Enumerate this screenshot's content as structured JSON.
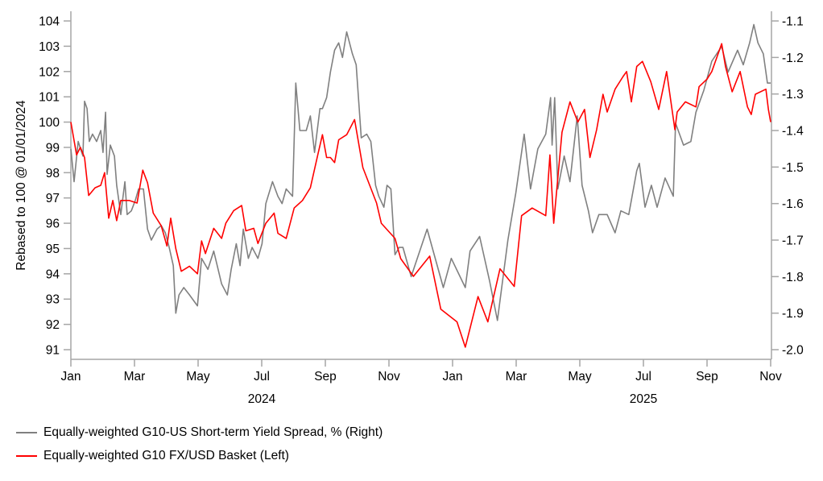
{
  "chart_data": {
    "type": "line",
    "title": "",
    "xlabel": "",
    "ylabel": "Rebased to 100 @ 01/01/2024",
    "x_unit": "months since Jan 2024",
    "x_ticks": [
      "Jan",
      "Mar",
      "May",
      "Jul",
      "Sep",
      "Nov",
      "Jan",
      "Mar",
      "May",
      "Jul",
      "Sep",
      "Nov"
    ],
    "x_tick_months": [
      0,
      2,
      4,
      6,
      8,
      10,
      12,
      14,
      16,
      18,
      20,
      22
    ],
    "year_labels": [
      {
        "label": "2024",
        "at_month": 6
      },
      {
        "label": "2025",
        "at_month": 18
      }
    ],
    "xlim": [
      0,
      22
    ],
    "y_left": {
      "ylim": [
        91,
        104
      ],
      "ticks": [
        "91",
        "92",
        "93",
        "94",
        "95",
        "96",
        "97",
        "98",
        "99",
        "100",
        "101",
        "102",
        "103",
        "104"
      ]
    },
    "y_right": {
      "ylim": [
        -2.0,
        -1.1
      ],
      "ticks": [
        "-2.0",
        "-1.9",
        "-1.8",
        "-1.7",
        "-1.6",
        "-1.5",
        "-1.4",
        "-1.3",
        "-1.2",
        "-1.1"
      ]
    },
    "grid": false,
    "legend_position": "bottom-left",
    "series": [
      {
        "name": "Equally-weighted G10-US Short-term Yield Spread, % (Right)",
        "axis": "right",
        "color": "#808080",
        "points": [
          [
            0,
            -1.45
          ],
          [
            0.1,
            -1.54
          ],
          [
            0.23,
            -1.43
          ],
          [
            0.38,
            -1.47
          ],
          [
            0.43,
            -1.32
          ],
          [
            0.51,
            -1.34
          ],
          [
            0.58,
            -1.43
          ],
          [
            0.68,
            -1.41
          ],
          [
            0.81,
            -1.43
          ],
          [
            0.94,
            -1.4
          ],
          [
            1.01,
            -1.46
          ],
          [
            1.09,
            -1.35
          ],
          [
            1.14,
            -1.52
          ],
          [
            1.24,
            -1.44
          ],
          [
            1.37,
            -1.47
          ],
          [
            1.44,
            -1.55
          ],
          [
            1.57,
            -1.63
          ],
          [
            1.7,
            -1.54
          ],
          [
            1.77,
            -1.63
          ],
          [
            1.9,
            -1.62
          ],
          [
            2.03,
            -1.59
          ],
          [
            2.13,
            -1.56
          ],
          [
            2.28,
            -1.56
          ],
          [
            2.41,
            -1.67
          ],
          [
            2.53,
            -1.7
          ],
          [
            2.71,
            -1.67
          ],
          [
            2.84,
            -1.66
          ],
          [
            2.97,
            -1.68
          ],
          [
            3.09,
            -1.72
          ],
          [
            3.22,
            -1.77
          ],
          [
            3.3,
            -1.9
          ],
          [
            3.4,
            -1.85
          ],
          [
            3.55,
            -1.83
          ],
          [
            3.73,
            -1.85
          ],
          [
            3.98,
            -1.88
          ],
          [
            4.11,
            -1.75
          ],
          [
            4.31,
            -1.78
          ],
          [
            4.49,
            -1.73
          ],
          [
            4.74,
            -1.82
          ],
          [
            4.92,
            -1.85
          ],
          [
            5.04,
            -1.78
          ],
          [
            5.2,
            -1.71
          ],
          [
            5.32,
            -1.77
          ],
          [
            5.42,
            -1.67
          ],
          [
            5.58,
            -1.75
          ],
          [
            5.7,
            -1.72
          ],
          [
            5.88,
            -1.75
          ],
          [
            6.01,
            -1.71
          ],
          [
            6.13,
            -1.6
          ],
          [
            6.34,
            -1.54
          ],
          [
            6.51,
            -1.58
          ],
          [
            6.64,
            -1.6
          ],
          [
            6.77,
            -1.56
          ],
          [
            6.97,
            -1.58
          ],
          [
            7.07,
            -1.27
          ],
          [
            7.2,
            -1.4
          ],
          [
            7.4,
            -1.4
          ],
          [
            7.53,
            -1.36
          ],
          [
            7.66,
            -1.46
          ],
          [
            7.83,
            -1.34
          ],
          [
            7.91,
            -1.34
          ],
          [
            8.04,
            -1.31
          ],
          [
            8.16,
            -1.24
          ],
          [
            8.29,
            -1.18
          ],
          [
            8.42,
            -1.16
          ],
          [
            8.54,
            -1.2
          ],
          [
            8.67,
            -1.13
          ],
          [
            8.85,
            -1.19
          ],
          [
            8.97,
            -1.22
          ],
          [
            9.13,
            -1.42
          ],
          [
            9.3,
            -1.41
          ],
          [
            9.43,
            -1.43
          ],
          [
            9.58,
            -1.55
          ],
          [
            9.68,
            -1.58
          ],
          [
            9.84,
            -1.61
          ],
          [
            9.94,
            -1.55
          ],
          [
            10.06,
            -1.56
          ],
          [
            10.19,
            -1.74
          ],
          [
            10.32,
            -1.72
          ],
          [
            10.44,
            -1.72
          ],
          [
            10.7,
            -1.8
          ],
          [
            11.2,
            -1.67
          ],
          [
            11.71,
            -1.83
          ],
          [
            11.96,
            -1.75
          ],
          [
            12.4,
            -1.83
          ],
          [
            12.55,
            -1.73
          ],
          [
            12.85,
            -1.69
          ],
          [
            13.16,
            -1.81
          ],
          [
            13.41,
            -1.92
          ],
          [
            13.74,
            -1.7
          ],
          [
            13.99,
            -1.57
          ],
          [
            14.25,
            -1.41
          ],
          [
            14.45,
            -1.56
          ],
          [
            14.68,
            -1.45
          ],
          [
            14.93,
            -1.41
          ],
          [
            15.08,
            -1.31
          ],
          [
            15.13,
            -1.44
          ],
          [
            15.21,
            -1.31
          ],
          [
            15.31,
            -1.56
          ],
          [
            15.51,
            -1.47
          ],
          [
            15.69,
            -1.54
          ],
          [
            15.92,
            -1.36
          ],
          [
            16.07,
            -1.55
          ],
          [
            16.27,
            -1.62
          ],
          [
            16.4,
            -1.68
          ],
          [
            16.6,
            -1.63
          ],
          [
            16.86,
            -1.63
          ],
          [
            17.11,
            -1.68
          ],
          [
            17.29,
            -1.62
          ],
          [
            17.54,
            -1.63
          ],
          [
            17.79,
            -1.51
          ],
          [
            17.87,
            -1.49
          ],
          [
            18.05,
            -1.61
          ],
          [
            18.25,
            -1.55
          ],
          [
            18.43,
            -1.61
          ],
          [
            18.68,
            -1.53
          ],
          [
            18.94,
            -1.58
          ],
          [
            19.01,
            -1.38
          ],
          [
            19.26,
            -1.44
          ],
          [
            19.49,
            -1.43
          ],
          [
            19.65,
            -1.35
          ],
          [
            19.9,
            -1.29
          ],
          [
            20.15,
            -1.21
          ],
          [
            20.46,
            -1.17
          ],
          [
            20.66,
            -1.24
          ],
          [
            20.96,
            -1.18
          ],
          [
            21.14,
            -1.22
          ],
          [
            21.34,
            -1.16
          ],
          [
            21.47,
            -1.11
          ],
          [
            21.6,
            -1.16
          ],
          [
            21.77,
            -1.19
          ],
          [
            21.9,
            -1.27
          ],
          [
            22.0,
            -1.27
          ]
        ]
      },
      {
        "name": "Equally-weighted G10 FX/USD Basket (Left)",
        "axis": "left",
        "color": "#ff0000",
        "points": [
          [
            0,
            100
          ],
          [
            0.18,
            98.7
          ],
          [
            0.3,
            99
          ],
          [
            0.43,
            98.6
          ],
          [
            0.56,
            97.1
          ],
          [
            0.76,
            97.4
          ],
          [
            0.94,
            97.5
          ],
          [
            1.06,
            98
          ],
          [
            1.19,
            96.2
          ],
          [
            1.32,
            96.9
          ],
          [
            1.44,
            96.1
          ],
          [
            1.57,
            96.9
          ],
          [
            1.83,
            96.9
          ],
          [
            2.08,
            96.8
          ],
          [
            2.26,
            98.1
          ],
          [
            2.41,
            97.6
          ],
          [
            2.59,
            96.4
          ],
          [
            2.84,
            95.9
          ],
          [
            3.02,
            95.1
          ],
          [
            3.14,
            96.2
          ],
          [
            3.3,
            95.0
          ],
          [
            3.47,
            94.1
          ],
          [
            3.73,
            94.3
          ],
          [
            3.98,
            94.0
          ],
          [
            4.11,
            95.3
          ],
          [
            4.23,
            94.8
          ],
          [
            4.49,
            95.8
          ],
          [
            4.74,
            95.4
          ],
          [
            4.87,
            96.0
          ],
          [
            5.12,
            96.5
          ],
          [
            5.37,
            96.7
          ],
          [
            5.5,
            95.7
          ],
          [
            5.75,
            95.8
          ],
          [
            5.88,
            95.2
          ],
          [
            6.13,
            96.0
          ],
          [
            6.39,
            96.4
          ],
          [
            6.51,
            95.6
          ],
          [
            6.77,
            95.4
          ],
          [
            7.02,
            96.6
          ],
          [
            7.28,
            96.9
          ],
          [
            7.53,
            97.4
          ],
          [
            7.78,
            98.8
          ],
          [
            7.91,
            99.5
          ],
          [
            8.04,
            98.6
          ],
          [
            8.16,
            98.6
          ],
          [
            8.29,
            98.4
          ],
          [
            8.42,
            99.3
          ],
          [
            8.67,
            99.5
          ],
          [
            8.92,
            100.1
          ],
          [
            9.18,
            98.2
          ],
          [
            9.61,
            96.8
          ],
          [
            9.76,
            96.0
          ],
          [
            10.19,
            95.4
          ],
          [
            10.37,
            94.6
          ],
          [
            10.77,
            93.9
          ],
          [
            11.28,
            94.7
          ],
          [
            11.63,
            92.6
          ],
          [
            12.14,
            92.1
          ],
          [
            12.4,
            91.1
          ],
          [
            12.8,
            93.1
          ],
          [
            13.11,
            92.1
          ],
          [
            13.49,
            94.2
          ],
          [
            13.94,
            93.5
          ],
          [
            14.17,
            96.3
          ],
          [
            14.5,
            96.6
          ],
          [
            14.93,
            96.3
          ],
          [
            15.06,
            98.7
          ],
          [
            15.18,
            96.0
          ],
          [
            15.44,
            99.6
          ],
          [
            15.69,
            100.8
          ],
          [
            15.94,
            100.0
          ],
          [
            16.15,
            100.5
          ],
          [
            16.32,
            98.6
          ],
          [
            16.53,
            99.7
          ],
          [
            16.73,
            101.1
          ],
          [
            16.86,
            100.4
          ],
          [
            17.11,
            101.3
          ],
          [
            17.36,
            101.8
          ],
          [
            17.47,
            102.0
          ],
          [
            17.62,
            100.8
          ],
          [
            17.79,
            102.2
          ],
          [
            17.97,
            102.4
          ],
          [
            18.23,
            101.6
          ],
          [
            18.48,
            100.5
          ],
          [
            18.73,
            102.0
          ],
          [
            18.99,
            99.7
          ],
          [
            19.06,
            100.4
          ],
          [
            19.32,
            100.8
          ],
          [
            19.65,
            100.6
          ],
          [
            19.75,
            101.4
          ],
          [
            20.0,
            101.7
          ],
          [
            20.15,
            102.0
          ],
          [
            20.46,
            103.1
          ],
          [
            20.58,
            102.2
          ],
          [
            20.79,
            101.2
          ],
          [
            21.04,
            102.0
          ],
          [
            21.27,
            100.6
          ],
          [
            21.39,
            100.3
          ],
          [
            21.52,
            101.1
          ],
          [
            21.85,
            101.3
          ],
          [
            21.93,
            100.5
          ],
          [
            22.0,
            100.0
          ]
        ]
      }
    ]
  }
}
